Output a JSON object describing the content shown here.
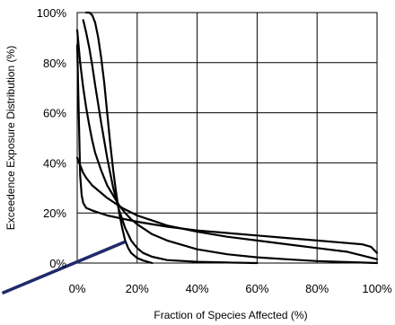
{
  "chart_data": {
    "type": "line",
    "title": "",
    "xlabel": "Fraction of Species Affected (%)",
    "ylabel": "Exceedence Exposure Distribution (%)",
    "xlim": [
      0,
      100
    ],
    "ylim": [
      0,
      100
    ],
    "x_ticks": [
      "0%",
      "20%",
      "40%",
      "60%",
      "80%",
      "100%"
    ],
    "y_ticks": [
      "0%",
      "20%",
      "40%",
      "60%",
      "80%",
      "100%"
    ],
    "grid": true,
    "legend": "none",
    "series_color": "#000000",
    "series": [
      {
        "x": [
          0,
          1,
          2,
          3,
          4,
          5,
          6,
          8,
          10,
          12,
          14,
          16,
          18,
          20,
          25,
          30,
          40,
          50,
          60,
          70,
          80,
          90,
          100
        ],
        "y": [
          93,
          80,
          70,
          62,
          55,
          49,
          44,
          37,
          31,
          27,
          23,
          20,
          17.5,
          15.5,
          11.5,
          9,
          5.5,
          3.5,
          2.3,
          1.5,
          0.8,
          0.4,
          0
        ]
      },
      {
        "x": [
          0,
          0.5,
          1,
          1.5,
          2,
          3,
          5,
          10,
          20,
          30,
          40,
          50,
          60,
          70,
          80,
          90,
          95,
          98,
          100
        ],
        "y": [
          87,
          60,
          35,
          27,
          24,
          22,
          21,
          19,
          16.5,
          14.5,
          13,
          12,
          11,
          10,
          9,
          8,
          7.5,
          6.5,
          4
        ]
      },
      {
        "x": [
          2,
          3,
          4,
          5,
          6,
          8,
          10,
          12,
          14,
          16,
          18,
          20,
          22,
          25,
          30,
          40,
          50,
          60
        ],
        "y": [
          97,
          92,
          86,
          79,
          71,
          56,
          42,
          30,
          21,
          14,
          9,
          6,
          4,
          2.5,
          1.2,
          0.5,
          0.2,
          0
        ]
      },
      {
        "x": [
          3,
          4,
          5,
          6,
          7,
          8,
          9,
          10,
          11,
          12,
          13,
          14,
          15,
          16,
          17,
          18,
          20,
          22,
          25
        ],
        "y": [
          100,
          100,
          99,
          96,
          90,
          82,
          72,
          60,
          48,
          37,
          28,
          20,
          14,
          9,
          6,
          4,
          2,
          1,
          0
        ]
      },
      {
        "x": [
          0,
          1,
          2,
          3,
          5,
          8,
          10,
          15,
          20,
          25,
          30,
          40,
          50,
          60,
          70,
          80,
          90,
          95,
          100
        ],
        "y": [
          42,
          39,
          36,
          34,
          31,
          28,
          26,
          22,
          19,
          17,
          15,
          12.5,
          10.5,
          9,
          7.5,
          6,
          4.5,
          3,
          1.5
        ]
      }
    ],
    "annotations": [
      {
        "type": "arrow-line",
        "color": "#1f2a6b",
        "from": [
          -25,
          -12
        ],
        "to": [
          16,
          8.5
        ]
      }
    ]
  }
}
